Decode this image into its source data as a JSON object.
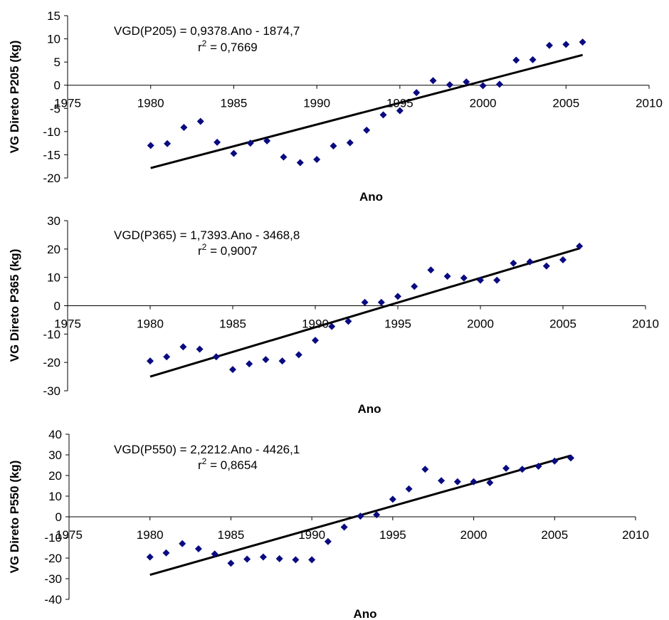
{
  "chart_data": [
    {
      "type": "scatter",
      "xlabel": "Ano",
      "ylabel": "VG Direto P205 (kg)",
      "xlim": [
        1975,
        2010
      ],
      "ylim": [
        -20,
        15
      ],
      "xticks": [
        1975,
        1980,
        1985,
        1990,
        1995,
        2000,
        2005,
        2010
      ],
      "yticks": [
        -20,
        -15,
        -10,
        -5,
        0,
        5,
        10,
        15
      ],
      "equation": "VGD(P205) = 0,9378.Ano - 1874,7",
      "r2_label": "r2 = 0,7669",
      "grid": false,
      "series": [
        {
          "x": [
            1980,
            1981,
            1982,
            1983,
            1984,
            1985,
            1986,
            1987,
            1988,
            1989,
            1990,
            1991,
            1992,
            1993,
            1994,
            1995,
            1996,
            1997,
            1998,
            1999,
            2000,
            2001,
            2002,
            2003,
            2004,
            2005,
            2006
          ],
          "y": [
            -13,
            -12.6,
            -9.1,
            -7.8,
            -12.3,
            -14.7,
            -12.5,
            -12,
            -15.5,
            -16.7,
            -16,
            -13.1,
            -12.4,
            -9.7,
            -6.4,
            -5.5,
            -1.6,
            1,
            0.1,
            0.7,
            -0.1,
            0.2,
            5.4,
            5.5,
            8.6,
            8.8,
            9.3
          ]
        }
      ],
      "trendline": {
        "slope": 0.9378,
        "intercept": -1874.7,
        "x_range": [
          1980,
          2006
        ]
      },
      "colors": {
        "marker": "#0a0a80",
        "trendline": "#000000"
      }
    },
    {
      "type": "scatter",
      "xlabel": "Ano",
      "ylabel": "VG Direto P365 (kg)",
      "xlim": [
        1975,
        2010
      ],
      "ylim": [
        -30,
        30
      ],
      "xticks": [
        1975,
        1980,
        1985,
        1990,
        1995,
        2000,
        2005,
        2010
      ],
      "yticks": [
        -30,
        -20,
        -10,
        0,
        10,
        20,
        30
      ],
      "equation": "VGD(P365) = 1,7393.Ano - 3468,8",
      "r2_label": "r2 = 0,9007",
      "grid": false,
      "series": [
        {
          "x": [
            1980,
            1981,
            1982,
            1983,
            1984,
            1985,
            1986,
            1987,
            1988,
            1989,
            1990,
            1991,
            1992,
            1993,
            1994,
            1995,
            1996,
            1997,
            1998,
            1999,
            2000,
            2001,
            2002,
            2003,
            2004,
            2005,
            2006
          ],
          "y": [
            -19.5,
            -18,
            -14.5,
            -15.3,
            -18,
            -22.5,
            -20.5,
            -19,
            -19.5,
            -17.3,
            -12.2,
            -7.3,
            -5.5,
            1.2,
            1.2,
            3.3,
            6.8,
            12.6,
            10.4,
            9.8,
            9,
            9,
            15,
            15.5,
            14,
            16.2,
            21
          ]
        }
      ],
      "trendline": {
        "slope": 1.7393,
        "intercept": -3468.8,
        "x_range": [
          1980,
          2006
        ]
      },
      "colors": {
        "marker": "#0a0a80",
        "trendline": "#000000"
      }
    },
    {
      "type": "scatter",
      "xlabel": "Ano",
      "ylabel": "VG Direto P550 (kg)",
      "xlim": [
        1975,
        2010
      ],
      "ylim": [
        -40,
        40
      ],
      "xticks": [
        1975,
        1980,
        1985,
        1990,
        1995,
        2000,
        2005,
        2010
      ],
      "yticks": [
        -40,
        -30,
        -20,
        -10,
        0,
        10,
        20,
        30,
        40
      ],
      "equation": "VGD(P550) = 2,2212.Ano - 4426,1",
      "r2_label": "r2 = 0,8654",
      "grid": false,
      "series": [
        {
          "x": [
            1980,
            1981,
            1982,
            1983,
            1984,
            1985,
            1986,
            1987,
            1988,
            1989,
            1990,
            1991,
            1992,
            1993,
            1994,
            1995,
            1996,
            1997,
            1998,
            1999,
            2000,
            2001,
            2002,
            2003,
            2004,
            2005,
            2006
          ],
          "y": [
            -19.5,
            -17.5,
            -13,
            -15.5,
            -18,
            -22.5,
            -20.5,
            -19.5,
            -20.3,
            -20.8,
            -20.8,
            -12,
            -5,
            0.3,
            1,
            8.5,
            13.5,
            23,
            17.5,
            17,
            17,
            16.5,
            23.5,
            23,
            24.5,
            27,
            28.5
          ]
        }
      ],
      "trendline": {
        "slope": 2.2212,
        "intercept": -4426.1,
        "x_range": [
          1980,
          2006
        ]
      },
      "colors": {
        "marker": "#0a0a80",
        "trendline": "#000000"
      }
    }
  ]
}
